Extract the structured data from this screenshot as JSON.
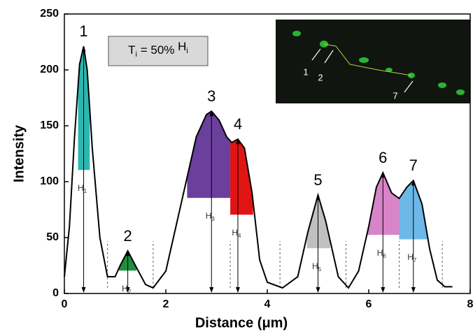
{
  "chart_data": {
    "type": "line",
    "xlabel": "Distance (μm)",
    "ylabel": "Intensity",
    "xlim": [
      0,
      8
    ],
    "ylim": [
      0,
      250
    ],
    "xticks": [
      0,
      2,
      4,
      6,
      8
    ],
    "yticks": [
      0,
      50,
      100,
      150,
      200,
      250
    ],
    "x": [
      0,
      0.1,
      0.2,
      0.3,
      0.38,
      0.45,
      0.55,
      0.7,
      0.85,
      1.0,
      1.1,
      1.25,
      1.4,
      1.6,
      1.75,
      2.0,
      2.2,
      2.4,
      2.6,
      2.8,
      2.9,
      3.05,
      3.2,
      3.3,
      3.42,
      3.55,
      3.7,
      3.85,
      4.0,
      4.3,
      4.6,
      4.8,
      5.0,
      5.15,
      5.4,
      5.6,
      5.8,
      6.0,
      6.15,
      6.28,
      6.45,
      6.6,
      6.75,
      6.88,
      7.05,
      7.2,
      7.35,
      7.5,
      7.65
    ],
    "values": [
      15,
      60,
      140,
      205,
      221,
      200,
      130,
      50,
      15,
      15,
      25,
      38,
      25,
      8,
      5,
      20,
      60,
      100,
      140,
      160,
      163,
      155,
      140,
      135,
      138,
      130,
      90,
      30,
      10,
      5,
      15,
      55,
      88,
      65,
      15,
      5,
      20,
      60,
      95,
      108,
      90,
      85,
      95,
      101,
      80,
      40,
      12,
      6,
      6
    ],
    "color": "#000000",
    "height_symbol": "H",
    "peaks": [
      {
        "label": "1",
        "x": 0.38,
        "height": 221,
        "threshold": 110,
        "range": [
          0.27,
          0.5
        ],
        "color": "#2cb6b0"
      },
      {
        "label": "2",
        "x": 1.25,
        "height": 38,
        "threshold": 20,
        "range": [
          1.08,
          1.42
        ],
        "color": "#1f8f3c"
      },
      {
        "label": "3",
        "x": 2.9,
        "height": 163,
        "threshold": 85,
        "range": [
          2.42,
          3.27
        ],
        "color": "#6b3f9c"
      },
      {
        "label": "4",
        "x": 3.42,
        "height": 138,
        "threshold": 70,
        "range": [
          3.27,
          3.72
        ],
        "color": "#e11414"
      },
      {
        "label": "5",
        "x": 5.0,
        "height": 88,
        "threshold": 40,
        "range": [
          4.78,
          5.24
        ],
        "color": "#c0c0c0"
      },
      {
        "label": "6",
        "x": 6.28,
        "height": 108,
        "threshold": 52,
        "range": [
          5.97,
          6.6
        ],
        "color": "#d884c8"
      },
      {
        "label": "7",
        "x": 6.88,
        "height": 101,
        "threshold": 48,
        "range": [
          6.6,
          7.15
        ],
        "color": "#6cb9e8"
      }
    ],
    "separators": [
      0.85,
      1.75,
      3.27,
      4.25,
      5.55,
      6.6,
      7.45
    ],
    "annotation": [
      "T",
      "i",
      " = 50% ",
      "H",
      "i"
    ],
    "inset_labels": [
      "1",
      "2",
      "7"
    ]
  }
}
